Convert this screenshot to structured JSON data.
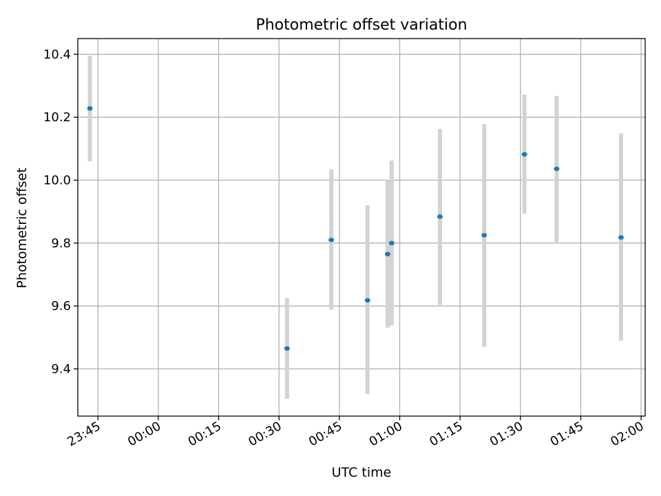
{
  "chart_data": {
    "type": "scatter",
    "title": "Photometric offset variation",
    "xlabel": "UTC time",
    "ylabel": "Photometric offset",
    "x_is_time": true,
    "x_tick_labels": [
      "23:45",
      "00:00",
      "00:15",
      "00:30",
      "00:45",
      "01:00",
      "01:15",
      "01:30",
      "01:45",
      "02:00"
    ],
    "x_tick_values": [
      "23:45",
      "24:00",
      "24:15",
      "24:30",
      "24:45",
      "25:00",
      "25:15",
      "25:30",
      "25:45",
      "26:00"
    ],
    "xlim": [
      "23:40",
      "26:01"
    ],
    "ylim": [
      9.25,
      10.45
    ],
    "y_ticks": [
      9.4,
      9.6,
      9.8,
      10.0,
      10.2,
      10.4
    ],
    "y_tick_labels": [
      "9.4",
      "9.6",
      "9.8",
      "10.0",
      "10.2",
      "10.4"
    ],
    "grid": true,
    "point_color": "#1f77b4",
    "errorbar_color": "#d3d3d3",
    "points": [
      {
        "t": "23:43",
        "y": 10.228,
        "lo": 10.06,
        "hi": 10.395
      },
      {
        "t": "24:32",
        "y": 9.465,
        "lo": 9.305,
        "hi": 9.625
      },
      {
        "t": "24:43",
        "y": 9.81,
        "lo": 9.588,
        "hi": 10.035
      },
      {
        "t": "24:52",
        "y": 9.618,
        "lo": 9.32,
        "hi": 9.92
      },
      {
        "t": "24:57",
        "y": 9.765,
        "lo": 9.532,
        "hi": 10.0
      },
      {
        "t": "24:58",
        "y": 9.8,
        "lo": 9.538,
        "hi": 10.062
      },
      {
        "t": "25:10",
        "y": 9.884,
        "lo": 9.603,
        "hi": 10.163
      },
      {
        "t": "25:21",
        "y": 9.825,
        "lo": 9.47,
        "hi": 10.178
      },
      {
        "t": "25:31",
        "y": 10.082,
        "lo": 9.893,
        "hi": 10.272
      },
      {
        "t": "25:39",
        "y": 10.036,
        "lo": 9.803,
        "hi": 10.268
      },
      {
        "t": "25:55",
        "y": 9.818,
        "lo": 9.49,
        "hi": 10.148
      }
    ]
  }
}
